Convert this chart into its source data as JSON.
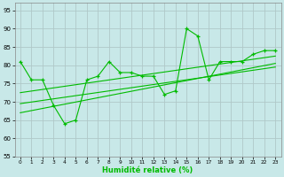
{
  "title": "",
  "xlabel": "Humidité relative (%)",
  "ylabel": "",
  "xlim": [
    -0.5,
    23.5
  ],
  "ylim": [
    55,
    97
  ],
  "yticks": [
    55,
    60,
    65,
    70,
    75,
    80,
    85,
    90,
    95
  ],
  "xticks": [
    0,
    1,
    2,
    3,
    4,
    5,
    6,
    7,
    8,
    9,
    10,
    11,
    12,
    13,
    14,
    15,
    16,
    17,
    18,
    19,
    20,
    21,
    22,
    23
  ],
  "background_color": "#c8e8e8",
  "grid_color": "#b0c8c8",
  "line_color": "#00bb00",
  "main_data": [
    81,
    76,
    76,
    69,
    64,
    65,
    76,
    77,
    81,
    78,
    78,
    77,
    77,
    72,
    73,
    90,
    88,
    76,
    81,
    81,
    81,
    83,
    84,
    84
  ],
  "trend_lines": [
    [
      0,
      67.0,
      23,
      80.5
    ],
    [
      0,
      69.5,
      23,
      79.5
    ],
    [
      0,
      72.5,
      23,
      82.5
    ]
  ]
}
